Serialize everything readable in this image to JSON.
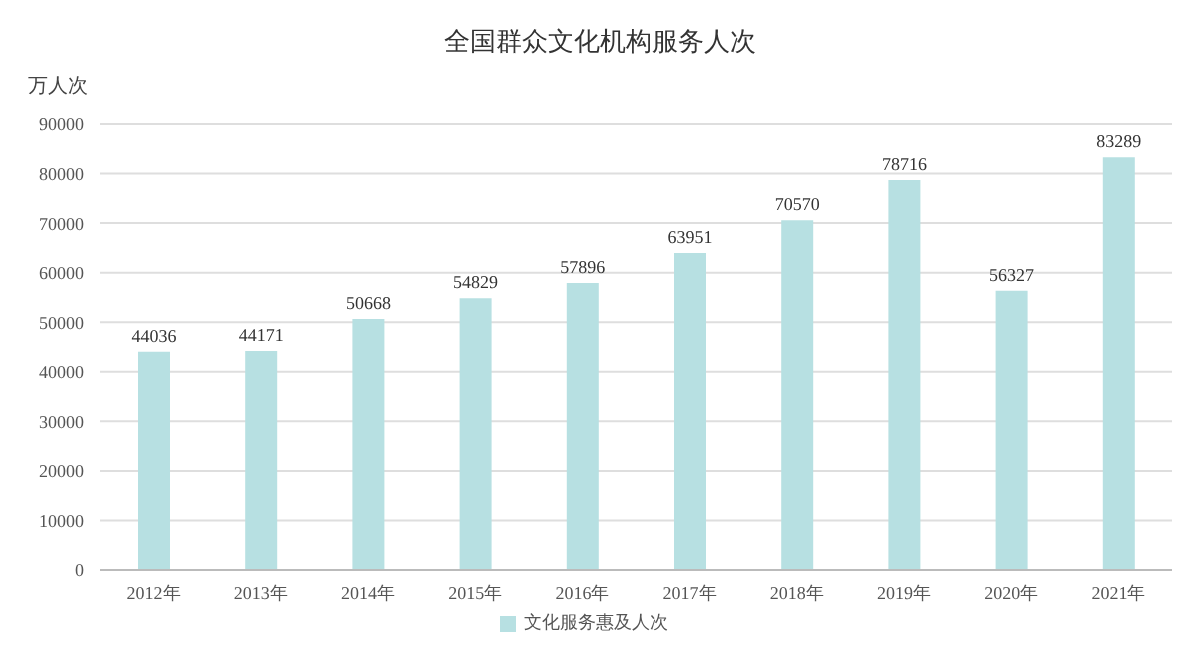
{
  "chart_data": {
    "type": "bar",
    "title": "全国群众文化机构服务人次",
    "ylabel": "万人次",
    "categories": [
      "2012年",
      "2013年",
      "2014年",
      "2015年",
      "2016年",
      "2017年",
      "2018年",
      "2019年",
      "2020年",
      "2021年"
    ],
    "series": [
      {
        "name": "文化服务惠及人次",
        "color": "#b7e0e2",
        "values": [
          44036,
          44171,
          50668,
          54829,
          57896,
          63951,
          70570,
          78716,
          56327,
          83289
        ]
      }
    ],
    "ylim": [
      0,
      90000
    ],
    "yticks": [
      0,
      10000,
      20000,
      30000,
      40000,
      50000,
      60000,
      70000,
      80000,
      90000
    ],
    "grid": "y",
    "legend": "bottom",
    "data_labels": true
  }
}
